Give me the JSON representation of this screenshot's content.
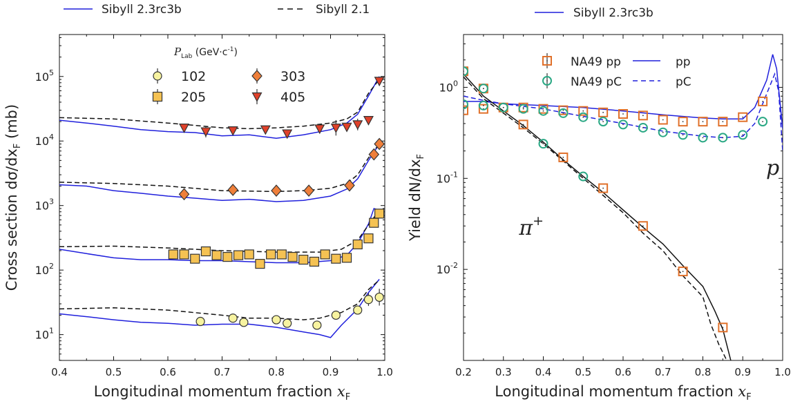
{
  "chart_data": [
    {
      "type": "scatter",
      "panel": "left",
      "xlabel": "Longitudinal momentum fraction",
      "xlabel_symbol": "x",
      "xlabel_sub": "F",
      "ylabel": "Cross section dσ/dx",
      "ylabel_sub": "F",
      "ylabel_unit": "(mb)",
      "xlim": [
        0.4,
        1.0
      ],
      "ylim_log10": [
        0.6,
        5.65
      ],
      "yscale": "log",
      "x_ticks": [
        "0.4",
        "0.5",
        "0.6",
        "0.7",
        "0.8",
        "0.9",
        "1.0"
      ],
      "y_ticks": [
        {
          "base": "10",
          "exp": "1",
          "log": 1
        },
        {
          "base": "10",
          "exp": "2",
          "log": 2
        },
        {
          "base": "10",
          "exp": "3",
          "log": 3
        },
        {
          "base": "10",
          "exp": "4",
          "log": 4
        },
        {
          "base": "10",
          "exp": "5",
          "log": 5
        }
      ],
      "top_legend": [
        {
          "label": "Sibyll 2.3rc3b",
          "style": "solid",
          "color": "#1f1fdc"
        },
        {
          "label": "Sibyll 2.1",
          "style": "dashed",
          "color": "#111111"
        }
      ],
      "legend_title": "P",
      "legend_title_sub": "Lab",
      "legend_title_unit": "(GeV·c",
      "legend_title_exp": "-1",
      "legend_title_close": ")",
      "legend": [
        {
          "label": "102",
          "marker": "circle",
          "color": "#f7f3a0"
        },
        {
          "label": "205",
          "marker": "square",
          "color": "#f5c253"
        },
        {
          "label": "303",
          "marker": "diamond",
          "color": "#ef7f3a"
        },
        {
          "label": "405",
          "marker": "triangle",
          "color": "#e0412a"
        }
      ],
      "series": [
        {
          "name": "102",
          "marker": "circle",
          "color": "#f7f3a0",
          "x": [
            0.66,
            0.72,
            0.74,
            0.8,
            0.82,
            0.875,
            0.91,
            0.95,
            0.97,
            0.99
          ],
          "y": [
            16,
            18,
            15.5,
            17,
            15,
            14,
            20,
            24,
            35,
            38
          ],
          "err": [
            0,
            0,
            0,
            0,
            0,
            0,
            0,
            0,
            0.1,
            0.13
          ]
        },
        {
          "name": "205",
          "marker": "square",
          "color": "#f5c253",
          "x": [
            0.61,
            0.63,
            0.65,
            0.67,
            0.69,
            0.71,
            0.73,
            0.75,
            0.77,
            0.79,
            0.81,
            0.83,
            0.85,
            0.87,
            0.89,
            0.91,
            0.93,
            0.95,
            0.97,
            0.98,
            0.99
          ],
          "y": [
            175,
            175,
            150,
            195,
            170,
            160,
            170,
            175,
            125,
            175,
            175,
            160,
            145,
            135,
            175,
            150,
            155,
            250,
            310,
            540,
            750
          ],
          "err": [
            0,
            0,
            0,
            0,
            0,
            0,
            0,
            0,
            0.06,
            0,
            0,
            0,
            0,
            0,
            0,
            0,
            0,
            0,
            0.05,
            0,
            0
          ]
        },
        {
          "name": "303",
          "marker": "diamond",
          "color": "#ef7f3a",
          "x": [
            0.63,
            0.72,
            0.8,
            0.86,
            0.935,
            0.98,
            0.99
          ],
          "y": [
            1500,
            1750,
            1700,
            1700,
            2050,
            6200,
            9000
          ]
        },
        {
          "name": "405",
          "marker": "triangle",
          "color": "#e0412a",
          "x": [
            0.63,
            0.67,
            0.72,
            0.78,
            0.82,
            0.88,
            0.91,
            0.93,
            0.95,
            0.97,
            0.99
          ],
          "y": [
            16000,
            14000,
            14500,
            15000,
            13000,
            15500,
            16000,
            16500,
            18000,
            21000,
            85000
          ],
          "err": [
            0,
            0.09,
            0,
            0,
            0,
            0,
            0.12,
            0,
            0.09,
            0,
            0
          ]
        },
        {
          "name": "Sibyll 2.3rc3b 102",
          "style": "solid",
          "color": "#1f1fdc",
          "x": [
            0.4,
            0.45,
            0.5,
            0.55,
            0.6,
            0.65,
            0.7,
            0.75,
            0.8,
            0.85,
            0.88,
            0.9,
            0.92,
            0.95,
            0.97,
            0.99
          ],
          "y": [
            21,
            19,
            17,
            15.5,
            15,
            14,
            14.5,
            14.5,
            13,
            11,
            10,
            9,
            14,
            25,
            45,
            72
          ]
        },
        {
          "name": "Sibyll 2.1 102",
          "style": "dashed",
          "color": "#111111",
          "x": [
            0.4,
            0.5,
            0.6,
            0.7,
            0.75,
            0.8,
            0.85,
            0.88,
            0.9,
            0.92,
            0.95,
            0.97,
            0.99
          ],
          "y": [
            25,
            26,
            24,
            20,
            18,
            18,
            17,
            18,
            20,
            22,
            30,
            50,
            70
          ]
        },
        {
          "name": "Sibyll 2.3rc3b 205",
          "style": "solid",
          "color": "#1f1fdc",
          "x": [
            0.4,
            0.45,
            0.5,
            0.55,
            0.6,
            0.65,
            0.7,
            0.75,
            0.8,
            0.85,
            0.9,
            0.93,
            0.95,
            0.97,
            0.98,
            0.99
          ],
          "y": [
            210,
            180,
            155,
            145,
            145,
            140,
            140,
            135,
            130,
            130,
            140,
            170,
            260,
            520,
            900,
            850
          ]
        },
        {
          "name": "Sibyll 2.1 205",
          "style": "dashed",
          "color": "#111111",
          "x": [
            0.4,
            0.5,
            0.6,
            0.7,
            0.8,
            0.88,
            0.92,
            0.95,
            0.97,
            0.99
          ],
          "y": [
            230,
            235,
            220,
            200,
            190,
            190,
            210,
            290,
            500,
            850
          ]
        },
        {
          "name": "Sibyll 2.3rc3b 303",
          "style": "solid",
          "color": "#1f1fdc",
          "x": [
            0.4,
            0.45,
            0.5,
            0.55,
            0.6,
            0.65,
            0.7,
            0.75,
            0.8,
            0.85,
            0.9,
            0.93,
            0.95,
            0.97,
            0.99
          ],
          "y": [
            2100,
            2000,
            1700,
            1550,
            1400,
            1300,
            1200,
            1250,
            1150,
            1200,
            1400,
            1800,
            2600,
            5000,
            9000
          ]
        },
        {
          "name": "Sibyll 2.1 303",
          "style": "dashed",
          "color": "#111111",
          "x": [
            0.4,
            0.5,
            0.6,
            0.7,
            0.8,
            0.85,
            0.9,
            0.93,
            0.95,
            0.97,
            0.99
          ],
          "y": [
            2300,
            2200,
            2000,
            1700,
            1650,
            1700,
            1850,
            2200,
            3000,
            5500,
            9000
          ]
        },
        {
          "name": "Sibyll 2.3rc3b 405",
          "style": "solid",
          "color": "#1f1fdc",
          "x": [
            0.4,
            0.45,
            0.5,
            0.55,
            0.6,
            0.65,
            0.7,
            0.75,
            0.8,
            0.85,
            0.9,
            0.93,
            0.95,
            0.97,
            0.99
          ],
          "y": [
            21000,
            19000,
            17000,
            15000,
            14000,
            13500,
            12000,
            12500,
            11000,
            12500,
            15000,
            19000,
            26000,
            50000,
            100000
          ]
        },
        {
          "name": "Sibyll 2.1 405",
          "style": "dashed",
          "color": "#111111",
          "x": [
            0.4,
            0.5,
            0.6,
            0.7,
            0.75,
            0.8,
            0.85,
            0.9,
            0.93,
            0.95,
            0.97,
            0.99
          ],
          "y": [
            23000,
            22000,
            19000,
            16000,
            15500,
            16000,
            17000,
            19000,
            22000,
            28000,
            55000,
            90000
          ]
        }
      ]
    },
    {
      "type": "scatter",
      "panel": "right",
      "xlabel": "Longitudinal momentum fraction",
      "xlabel_symbol": "x",
      "xlabel_sub": "F",
      "ylabel": "Yield dN/dx",
      "ylabel_sub": "F",
      "xlim": [
        0.2,
        1.0
      ],
      "ylim_log10": [
        -3.0,
        0.58
      ],
      "yscale": "log",
      "x_ticks": [
        "0.2",
        "0.3",
        "0.4",
        "0.5",
        "0.6",
        "0.7",
        "0.8",
        "0.9",
        "1.0"
      ],
      "y_ticks": [
        {
          "base": "10",
          "exp": "0",
          "log": 0
        },
        {
          "base": "10",
          "exp": "-1",
          "log": -1
        },
        {
          "base": "10",
          "exp": "-2",
          "log": -2
        }
      ],
      "top_legend": [
        {
          "label": "Sibyll 2.3rc3b",
          "style": "solid",
          "color": "#1f1fdc"
        }
      ],
      "legend": [
        {
          "label": "NA49 pp",
          "marker": "open-square",
          "color": "#e0702a"
        },
        {
          "label": "NA49 pC",
          "marker": "open-circle",
          "color": "#2aa884"
        },
        {
          "label": "pp",
          "style": "solid",
          "color": "#1f1fdc"
        },
        {
          "label": "pC",
          "style": "dashed",
          "color": "#1f1fdc"
        }
      ],
      "annotations": [
        {
          "text": "p",
          "x": 0.975,
          "y": 0.11
        },
        {
          "text": "π",
          "sup": "+",
          "x": 0.37,
          "y": 0.024
        }
      ],
      "series": [
        {
          "name": "NA49 pp",
          "marker": "open-square",
          "color": "#e0702a",
          "x": [
            0.2,
            0.25,
            0.3,
            0.35,
            0.4,
            0.45,
            0.5,
            0.55,
            0.6,
            0.65,
            0.7,
            0.75,
            0.8,
            0.85,
            0.9,
            0.95
          ],
          "y": [
            0.56,
            0.58,
            0.6,
            0.6,
            0.58,
            0.56,
            0.55,
            0.53,
            0.51,
            0.49,
            0.44,
            0.42,
            0.42,
            0.42,
            0.47,
            0.7
          ]
        },
        {
          "name": "NA49 pp π+",
          "marker": "open-square",
          "color": "#e0702a",
          "x": [
            0.2,
            0.25,
            0.35,
            0.45,
            0.55,
            0.65,
            0.75,
            0.85
          ],
          "y": [
            1.5,
            0.97,
            0.39,
            0.17,
            0.078,
            0.03,
            0.0095,
            0.0023
          ]
        },
        {
          "name": "NA49 pC",
          "marker": "open-circle",
          "color": "#2aa884",
          "x": [
            0.2,
            0.25,
            0.3,
            0.35,
            0.4,
            0.45,
            0.5,
            0.55,
            0.6,
            0.65,
            0.7,
            0.75,
            0.8,
            0.85,
            0.9,
            0.95
          ],
          "y": [
            1.5,
            0.97,
            0.6,
            0.58,
            0.55,
            0.52,
            0.47,
            0.42,
            0.39,
            0.36,
            0.32,
            0.3,
            0.28,
            0.28,
            0.3,
            0.42
          ]
        },
        {
          "name": "NA49 pC π+",
          "marker": "open-circle",
          "color": "#2aa884",
          "x": [
            0.2,
            0.25,
            0.4,
            0.5
          ],
          "y": [
            0.65,
            0.63,
            0.24,
            0.105
          ]
        },
        {
          "name": "pp",
          "style": "solid",
          "color": "#1f1fdc",
          "x": [
            0.2,
            0.25,
            0.3,
            0.4,
            0.5,
            0.6,
            0.7,
            0.8,
            0.85,
            0.9,
            0.93,
            0.96,
            0.975,
            0.985,
            1.0
          ],
          "y": [
            0.7,
            0.7,
            0.66,
            0.63,
            0.6,
            0.55,
            0.5,
            0.46,
            0.45,
            0.45,
            0.6,
            1.2,
            2.3,
            1.6,
            0.35
          ]
        },
        {
          "name": "pC",
          "style": "dashed",
          "color": "#1f1fdc",
          "x": [
            0.2,
            0.25,
            0.3,
            0.4,
            0.5,
            0.6,
            0.7,
            0.8,
            0.85,
            0.9,
            0.93,
            0.96,
            0.98,
            0.99,
            1.0
          ],
          "y": [
            0.8,
            0.72,
            0.66,
            0.58,
            0.48,
            0.4,
            0.33,
            0.29,
            0.28,
            0.29,
            0.4,
            0.85,
            1.4,
            0.9,
            0.2
          ]
        },
        {
          "name": "π+ pp",
          "style": "solid",
          "color": "#111111",
          "x": [
            0.2,
            0.25,
            0.3,
            0.35,
            0.4,
            0.45,
            0.5,
            0.55,
            0.6,
            0.65,
            0.7,
            0.75,
            0.8,
            0.83,
            0.85,
            0.87
          ],
          "y": [
            1.4,
            0.8,
            0.55,
            0.38,
            0.25,
            0.16,
            0.105,
            0.07,
            0.045,
            0.029,
            0.019,
            0.011,
            0.0065,
            0.0035,
            0.0022,
            0.001
          ]
        },
        {
          "name": "π+ pC",
          "style": "dashed",
          "color": "#111111",
          "x": [
            0.2,
            0.25,
            0.3,
            0.35,
            0.4,
            0.45,
            0.5,
            0.55,
            0.6,
            0.65,
            0.7,
            0.75,
            0.8,
            0.82,
            0.84,
            0.86
          ],
          "y": [
            1.3,
            0.75,
            0.52,
            0.36,
            0.24,
            0.155,
            0.1,
            0.065,
            0.042,
            0.025,
            0.016,
            0.0085,
            0.005,
            0.0025,
            0.0015,
            0.001
          ]
        }
      ]
    }
  ]
}
